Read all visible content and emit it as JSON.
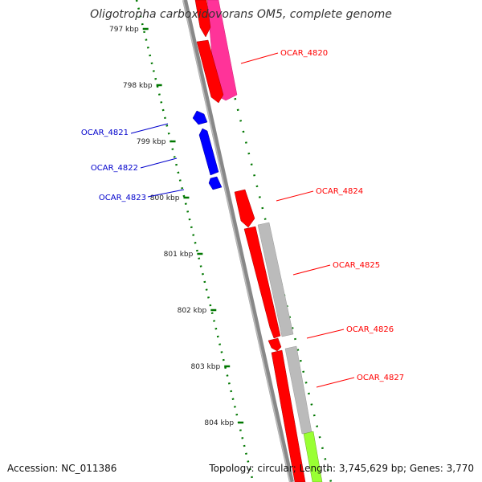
{
  "title": "Oligotropha carboxidovorans OM5, complete genome",
  "accession": "Accession: NC_011386",
  "summary": "Topology: circular; Length: 3,745,629 bp; Genes: 3,770",
  "colors": {
    "forward_gene": "#ff0000",
    "reverse_gene": "#0000ff",
    "magenta_gene": "#ff3399",
    "gray_gene": "#bbbbbb",
    "lime_gene": "#99ff33",
    "ruler": "#007700",
    "backbone": "#888888"
  },
  "ticks": [
    {
      "label": "797 kbp",
      "kbp": 797
    },
    {
      "label": "798 kbp",
      "kbp": 798
    },
    {
      "label": "799 kbp",
      "kbp": 799
    },
    {
      "label": "800 kbp",
      "kbp": 800
    },
    {
      "label": "801 kbp",
      "kbp": 801
    },
    {
      "label": "802 kbp",
      "kbp": 802
    },
    {
      "label": "803 kbp",
      "kbp": 803
    },
    {
      "label": "804 kbp",
      "kbp": 804
    }
  ],
  "labels": [
    {
      "text": "OCAR_4820",
      "strand": "forward"
    },
    {
      "text": "OCAR_4821",
      "strand": "reverse"
    },
    {
      "text": "OCAR_4822",
      "strand": "reverse"
    },
    {
      "text": "OCAR_4823",
      "strand": "reverse"
    },
    {
      "text": "OCAR_4824",
      "strand": "forward"
    },
    {
      "text": "OCAR_4825",
      "strand": "forward"
    },
    {
      "text": "OCAR_4826",
      "strand": "forward"
    },
    {
      "text": "OCAR_4827",
      "strand": "forward"
    }
  ]
}
